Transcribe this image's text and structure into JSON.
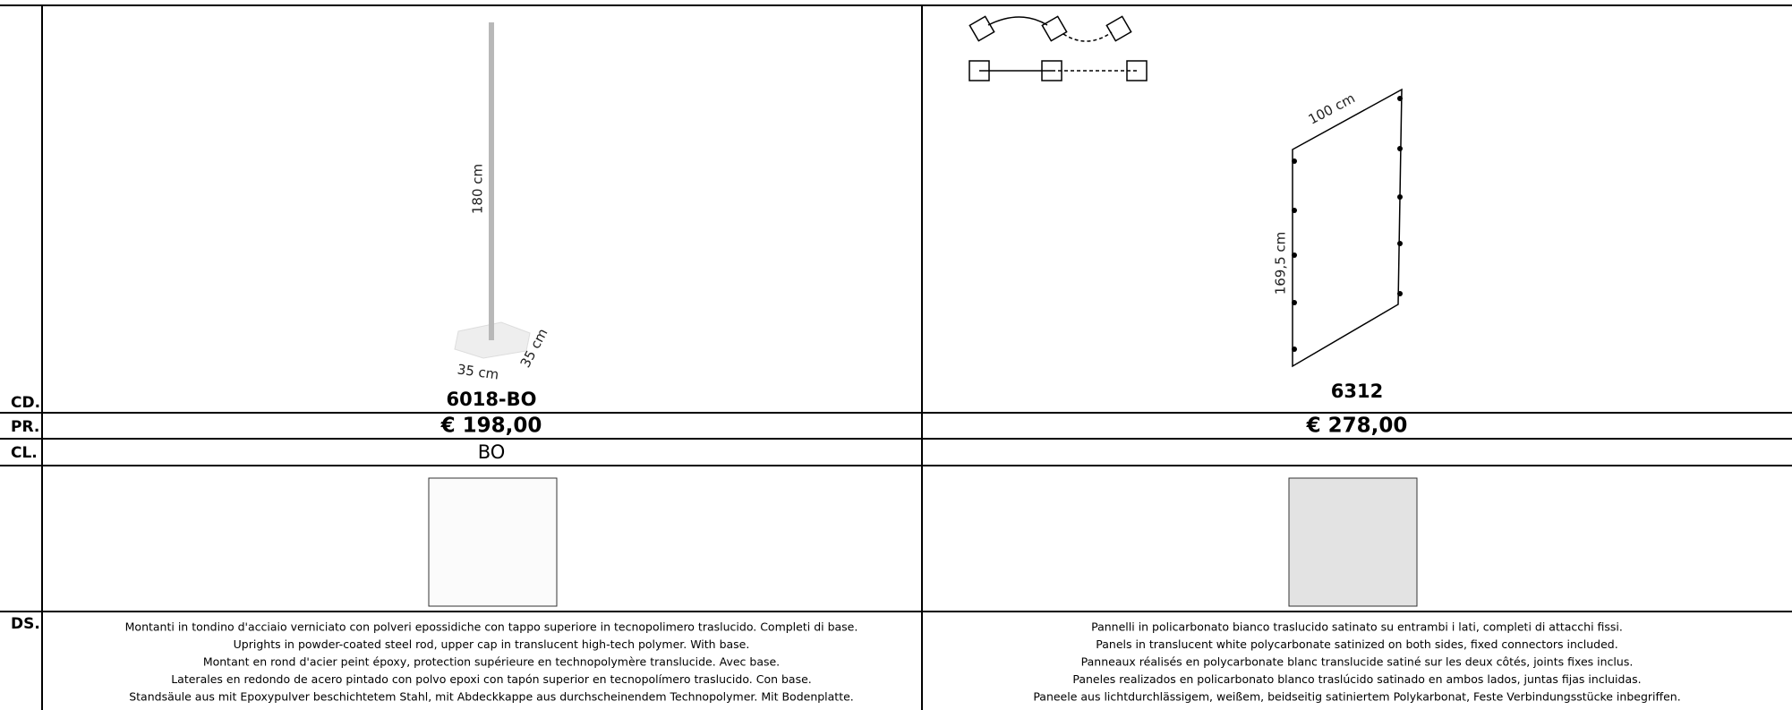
{
  "row_labels": [
    "CD.",
    "PR.",
    "CL.",
    "DS."
  ],
  "products": [
    {
      "dimensions": [
        "180 cm",
        "35 cm",
        "35 cm"
      ],
      "code": "6018-BO",
      "price": "€ 198,00",
      "class": "BO",
      "description": [
        "Montanti in tondino d'acciaio verniciato con polveri epossidiche con tappo superiore in tecnopolimero traslucido. Completi di base.",
        "Uprights in powder-coated steel rod, upper cap in translucent high-tech polymer. With base.",
        "Montant en rond d'acier peint époxy, protection supérieure en technopolymère translucide. Avec base.",
        "Laterales en redondo de acero pintado con polvo epoxi con tapón superior en tecnopolímero traslucido. Con base.",
        "Standsäule aus mit Epoxypulver beschichtetem Stahl, mit Abdeckkappe aus durchscheinendem Technopolymer. Mit Bodenplatte."
      ]
    },
    {
      "dimensions": [
        "100 cm",
        "169,5 cm"
      ],
      "code": "6312",
      "price": "€ 278,00",
      "description": [
        "Pannelli in policarbonato bianco traslucido satinato su entrambi i lati, completi di attacchi fissi.",
        "Panels in translucent white polycarbonate satinized on both sides, fixed connectors included.",
        "Panneaux réalisés en polycarbonate blanc translucide satiné sur les deux côtés, joints fixes inclus.",
        "Paneles realizados en policarbonato blanco traslúcido satinado en ambos lados, juntas fijas incluidas.",
        "Paneele aus lichtdurchlässigem, weißem, beidseitig satiniertem Polykarbonat, Feste Verbindungsstücke inbegriffen."
      ]
    }
  ]
}
